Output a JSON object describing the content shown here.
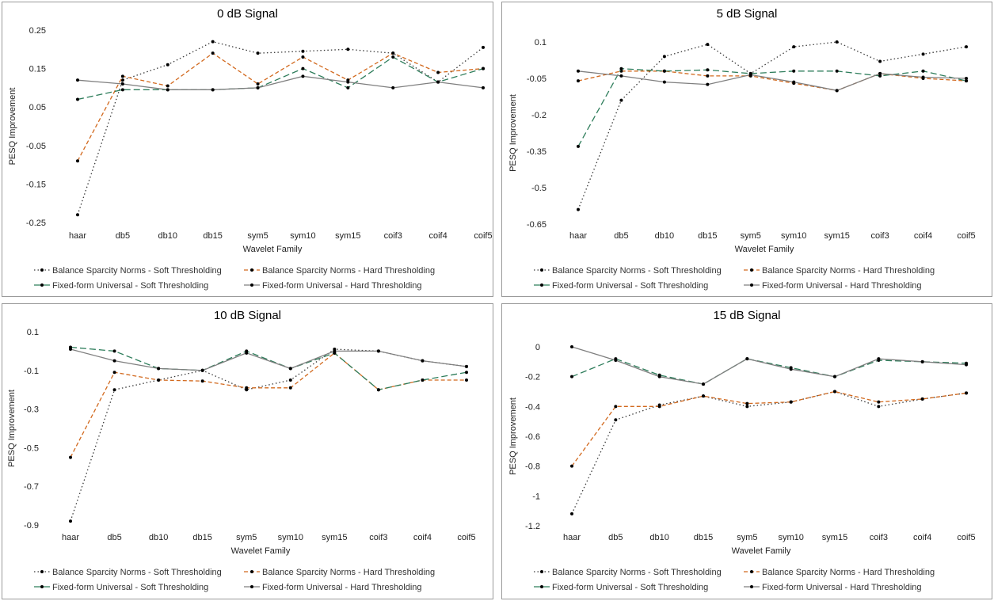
{
  "colors": {
    "bsn_soft": "#3a3a3a",
    "bsn_hard": "#d2691e",
    "ffu_soft": "#2e7d5b",
    "ffu_hard": "#7f7f7f",
    "marker": "#000000"
  },
  "chart_data": [
    {
      "type": "line",
      "title": "0 dB Signal",
      "xlabel": "Wavelet Family",
      "ylabel": "PESQ Improvement",
      "ylim": [
        -0.25,
        0.25
      ],
      "yticks": [
        -0.25,
        -0.15,
        -0.05,
        0.05,
        0.15,
        0.25
      ],
      "ytick_labels": [
        "-0.25",
        "-0.15",
        "-0.05",
        "0.05",
        "0.15",
        "0.25"
      ],
      "categories": [
        "haar",
        "db5",
        "db10",
        "db15",
        "sym5",
        "sym10",
        "sym15",
        "coif3",
        "coif4",
        "coif5"
      ],
      "series": [
        {
          "name": "Balance Sparcity Norms - Soft Thresholding",
          "style": "bsn_soft",
          "values": [
            -0.23,
            0.12,
            0.16,
            0.22,
            0.19,
            0.195,
            0.2,
            0.19,
            0.115,
            0.205
          ]
        },
        {
          "name": "Balance Sparcity Norms - Hard Thresholding",
          "style": "bsn_hard",
          "values": [
            -0.09,
            0.13,
            0.105,
            0.19,
            0.11,
            0.18,
            0.12,
            0.19,
            0.14,
            0.15
          ]
        },
        {
          "name": "Fixed-form Universal - Soft Thresholding",
          "style": "ffu_soft",
          "values": [
            0.07,
            0.095,
            0.095,
            0.095,
            0.1,
            0.15,
            0.1,
            0.18,
            0.115,
            0.15
          ]
        },
        {
          "name": "Fixed-form Universal - Hard Thresholding",
          "style": "ffu_hard",
          "values": [
            0.12,
            0.11,
            0.095,
            0.095,
            0.1,
            0.13,
            0.115,
            0.1,
            0.115,
            0.1
          ]
        }
      ]
    },
    {
      "type": "line",
      "title": "5 dB Signal",
      "xlabel": "Wavelet Family",
      "ylabel": "PESQ Improvement",
      "ylim": [
        -0.65,
        0.1
      ],
      "yticks": [
        -0.65,
        -0.5,
        -0.35,
        -0.2,
        -0.05,
        0.1
      ],
      "ytick_labels": [
        "-0.65",
        "-0.5",
        "-0.35",
        "-0.2",
        "-0.05",
        "0.1"
      ],
      "categories": [
        "haar",
        "db5",
        "db10",
        "db15",
        "sym5",
        "sym10",
        "sym15",
        "coif3",
        "coif4",
        "coif5"
      ],
      "series": [
        {
          "name": "Balance Sparcity Norms - Soft Thresholding",
          "style": "bsn_soft",
          "values": [
            -0.59,
            -0.14,
            0.04,
            0.09,
            -0.03,
            0.08,
            0.1,
            0.02,
            0.05,
            0.08
          ]
        },
        {
          "name": "Balance Sparcity Norms - Hard Thresholding",
          "style": "bsn_hard",
          "values": [
            -0.06,
            -0.02,
            -0.02,
            -0.04,
            -0.04,
            -0.07,
            -0.1,
            -0.03,
            -0.05,
            -0.06
          ]
        },
        {
          "name": "Fixed-form Universal - Soft Thresholding",
          "style": "ffu_soft",
          "values": [
            -0.33,
            -0.01,
            -0.02,
            -0.015,
            -0.03,
            -0.02,
            -0.02,
            -0.04,
            -0.02,
            -0.06
          ]
        },
        {
          "name": "Fixed-form Universal - Hard Thresholding",
          "style": "ffu_hard",
          "values": [
            -0.02,
            -0.04,
            -0.065,
            -0.075,
            -0.035,
            -0.065,
            -0.1,
            -0.03,
            -0.045,
            -0.05
          ]
        }
      ]
    },
    {
      "type": "line",
      "title": "10 dB Signal",
      "xlabel": "Wavelet Family",
      "ylabel": "PESQ Improvement",
      "ylim": [
        -0.9,
        0.1
      ],
      "yticks": [
        -0.9,
        -0.7,
        -0.5,
        -0.3,
        -0.1,
        0.1
      ],
      "ytick_labels": [
        "-0.9",
        "-0.7",
        "-0.5",
        "-0.3",
        "-0.1",
        "0.1"
      ],
      "categories": [
        "haar",
        "db5",
        "db10",
        "db15",
        "sym5",
        "sym10",
        "sym15",
        "coif3",
        "coif4",
        "coif5"
      ],
      "series": [
        {
          "name": "Balance Sparcity Norms - Soft Thresholding",
          "style": "bsn_soft",
          "values": [
            -0.88,
            -0.2,
            -0.15,
            -0.1,
            -0.2,
            -0.15,
            0.01,
            0.0,
            -0.05,
            -0.08
          ]
        },
        {
          "name": "Balance Sparcity Norms - Hard Thresholding",
          "style": "bsn_hard",
          "values": [
            -0.55,
            -0.11,
            -0.15,
            -0.155,
            -0.19,
            -0.19,
            -0.01,
            -0.2,
            -0.15,
            -0.15
          ]
        },
        {
          "name": "Fixed-form Universal - Soft Thresholding",
          "style": "ffu_soft",
          "values": [
            0.02,
            0.0,
            -0.09,
            -0.1,
            0.0,
            -0.09,
            -0.01,
            -0.2,
            -0.15,
            -0.11
          ]
        },
        {
          "name": "Fixed-form Universal - Hard Thresholding",
          "style": "ffu_hard",
          "values": [
            0.01,
            -0.05,
            -0.09,
            -0.1,
            -0.01,
            -0.09,
            0.0,
            0.0,
            -0.05,
            -0.08
          ]
        }
      ]
    },
    {
      "type": "line",
      "title": "15 dB Signal",
      "xlabel": "Wavelet Family",
      "ylabel": "PESQ Improvement",
      "ylim": [
        -1.2,
        0
      ],
      "yticks": [
        -1.2,
        -1,
        -0.8,
        -0.6,
        -0.4,
        -0.2,
        0
      ],
      "ytick_labels": [
        "-1.2",
        "-1",
        "-0.8",
        "-0.6",
        "-0.4",
        "-0.2",
        "0"
      ],
      "categories": [
        "haar",
        "db5",
        "db10",
        "db15",
        "sym5",
        "sym10",
        "sym15",
        "coif3",
        "coif4",
        "coif5"
      ],
      "series": [
        {
          "name": "Balance Sparcity Norms - Soft Thresholding",
          "style": "bsn_soft",
          "values": [
            -1.12,
            -0.49,
            -0.39,
            -0.33,
            -0.4,
            -0.37,
            -0.3,
            -0.4,
            -0.35,
            -0.31
          ]
        },
        {
          "name": "Balance Sparcity Norms - Hard Thresholding",
          "style": "bsn_hard",
          "values": [
            -0.8,
            -0.4,
            -0.4,
            -0.33,
            -0.38,
            -0.37,
            -0.3,
            -0.37,
            -0.35,
            -0.31
          ]
        },
        {
          "name": "Fixed-form Universal - Soft Thresholding",
          "style": "ffu_soft",
          "values": [
            -0.2,
            -0.08,
            -0.19,
            -0.25,
            -0.08,
            -0.14,
            -0.2,
            -0.09,
            -0.1,
            -0.11
          ]
        },
        {
          "name": "Fixed-form Universal - Hard Thresholding",
          "style": "ffu_hard",
          "values": [
            0.0,
            -0.09,
            -0.2,
            -0.25,
            -0.08,
            -0.15,
            -0.2,
            -0.08,
            -0.1,
            -0.12
          ]
        }
      ]
    }
  ]
}
